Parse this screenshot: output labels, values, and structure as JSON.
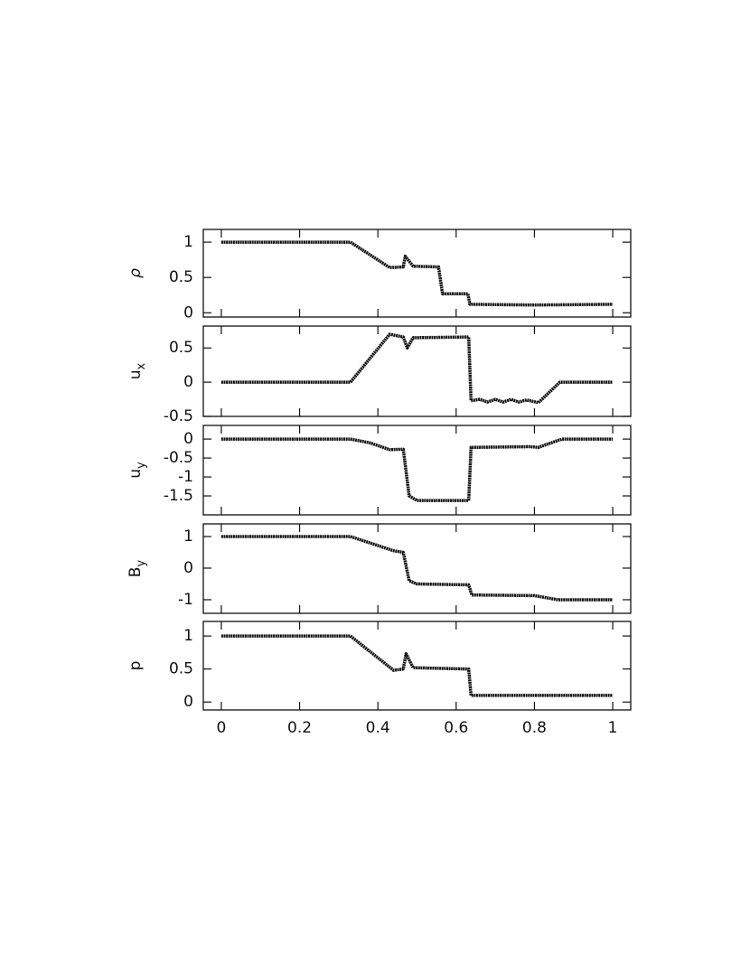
{
  "chart_data": [
    {
      "type": "line",
      "ylabel": "ρ",
      "ylim": [
        -0.06,
        1.18
      ],
      "yticks": [
        0,
        0.5,
        1
      ],
      "color": "#111111",
      "x": [
        0,
        0.33,
        0.43,
        0.465,
        0.47,
        0.49,
        0.555,
        0.565,
        0.63,
        0.635,
        0.8,
        1
      ],
      "values": [
        1,
        1,
        0.64,
        0.65,
        0.8,
        0.66,
        0.65,
        0.27,
        0.27,
        0.12,
        0.11,
        0.12
      ]
    },
    {
      "type": "line",
      "ylabel": "u",
      "ylabel_subscript": "x",
      "ylim": [
        -0.5,
        0.82
      ],
      "yticks": [
        -0.5,
        0,
        0.5
      ],
      "color": "#111111",
      "x": [
        0,
        0.33,
        0.43,
        0.465,
        0.475,
        0.49,
        0.632,
        0.638,
        0.66,
        0.68,
        0.7,
        0.72,
        0.74,
        0.76,
        0.78,
        0.81,
        0.865,
        1
      ],
      "values": [
        0,
        0,
        0.7,
        0.66,
        0.5,
        0.65,
        0.66,
        -0.27,
        -0.25,
        -0.29,
        -0.25,
        -0.29,
        -0.25,
        -0.29,
        -0.26,
        -0.3,
        0,
        0
      ]
    },
    {
      "type": "line",
      "ylabel": "u",
      "ylabel_subscript": "y",
      "ylim": [
        -2.0,
        0.36
      ],
      "yticks": [
        -1.5,
        -1,
        -0.5,
        0
      ],
      "color": "#111111",
      "x": [
        0,
        0.33,
        0.38,
        0.43,
        0.465,
        0.48,
        0.5,
        0.632,
        0.638,
        0.79,
        0.81,
        0.87,
        1
      ],
      "values": [
        0,
        0,
        -0.1,
        -0.28,
        -0.27,
        -1.5,
        -1.62,
        -1.62,
        -0.22,
        -0.2,
        -0.22,
        0,
        0
      ]
    },
    {
      "type": "line",
      "ylabel": "B",
      "ylabel_subscript": "y",
      "ylim": [
        -1.43,
        1.4
      ],
      "yticks": [
        -1,
        0,
        1
      ],
      "color": "#111111",
      "x": [
        0,
        0.33,
        0.44,
        0.465,
        0.48,
        0.5,
        0.632,
        0.64,
        0.8,
        0.86,
        1
      ],
      "values": [
        1,
        1,
        0.55,
        0.5,
        -0.4,
        -0.5,
        -0.53,
        -0.85,
        -0.87,
        -1,
        -1
      ]
    },
    {
      "type": "line",
      "ylabel": "p",
      "ylim": [
        -0.12,
        1.22
      ],
      "yticks": [
        0,
        0.5,
        1
      ],
      "color": "#111111",
      "x": [
        0,
        0.33,
        0.44,
        0.465,
        0.472,
        0.49,
        0.632,
        0.638,
        1
      ],
      "values": [
        1,
        1,
        0.48,
        0.5,
        0.73,
        0.52,
        0.5,
        0.1,
        0.1
      ],
      "xlim": [
        -0.046,
        1.046
      ],
      "xticks": [
        0,
        0.2,
        0.4,
        0.6,
        0.8,
        1
      ]
    }
  ]
}
